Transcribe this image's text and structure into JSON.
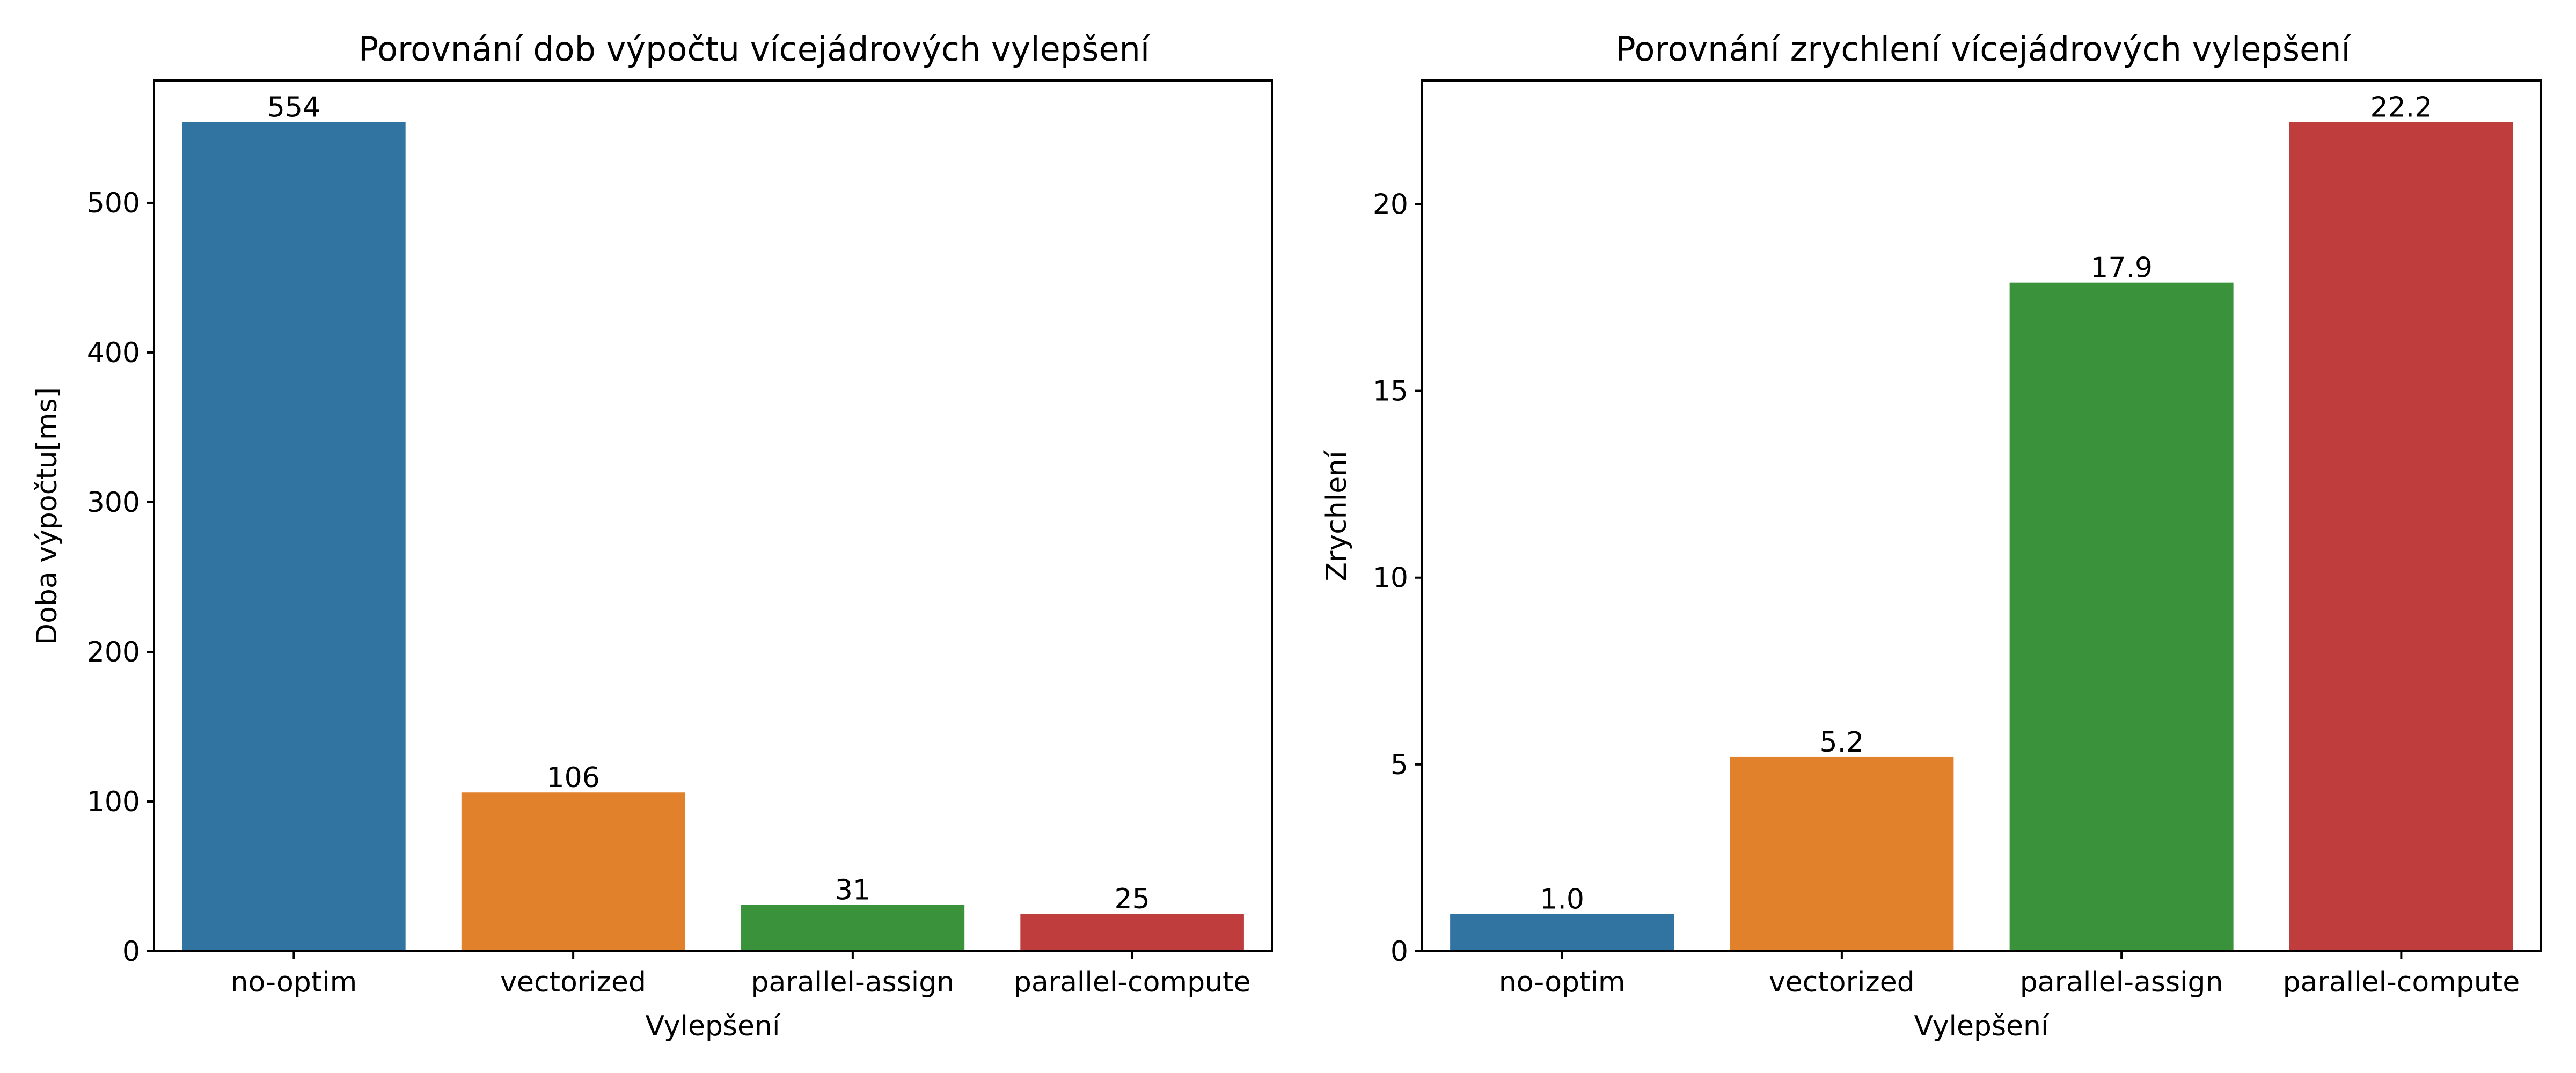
{
  "chart_data": [
    {
      "type": "bar",
      "title": "Porovnání dob výpočtu vícejádrových vylepšení",
      "xlabel": "Vylepšení",
      "ylabel": "Doba výpočtu[ms]",
      "categories": [
        "no-optim",
        "vectorized",
        "parallel-assign",
        "parallel-compute"
      ],
      "values": [
        554,
        106,
        31,
        25
      ],
      "data_labels": [
        "554",
        "106",
        "31",
        "25"
      ],
      "colors": [
        "#3274a1",
        "#e1812c",
        "#3a923a",
        "#c03d3e"
      ],
      "ylim": [
        0,
        581.7
      ],
      "yticks": [
        0,
        100,
        200,
        300,
        400,
        500
      ],
      "grid": false,
      "legend": "none"
    },
    {
      "type": "bar",
      "title": "Porovnání zrychlení vícejádrových vylepšení",
      "xlabel": "Vylepšení",
      "ylabel": "Zrychlení",
      "categories": [
        "no-optim",
        "vectorized",
        "parallel-assign",
        "parallel-compute"
      ],
      "values": [
        1.0,
        5.2,
        17.9,
        22.2
      ],
      "data_labels": [
        "1.0",
        "5.2",
        "17.9",
        "22.2"
      ],
      "colors": [
        "#3274a1",
        "#e1812c",
        "#3a923a",
        "#c03d3e"
      ],
      "ylim": [
        0,
        23.31
      ],
      "yticks": [
        0,
        5,
        10,
        15,
        20
      ],
      "grid": false,
      "legend": "none"
    }
  ]
}
